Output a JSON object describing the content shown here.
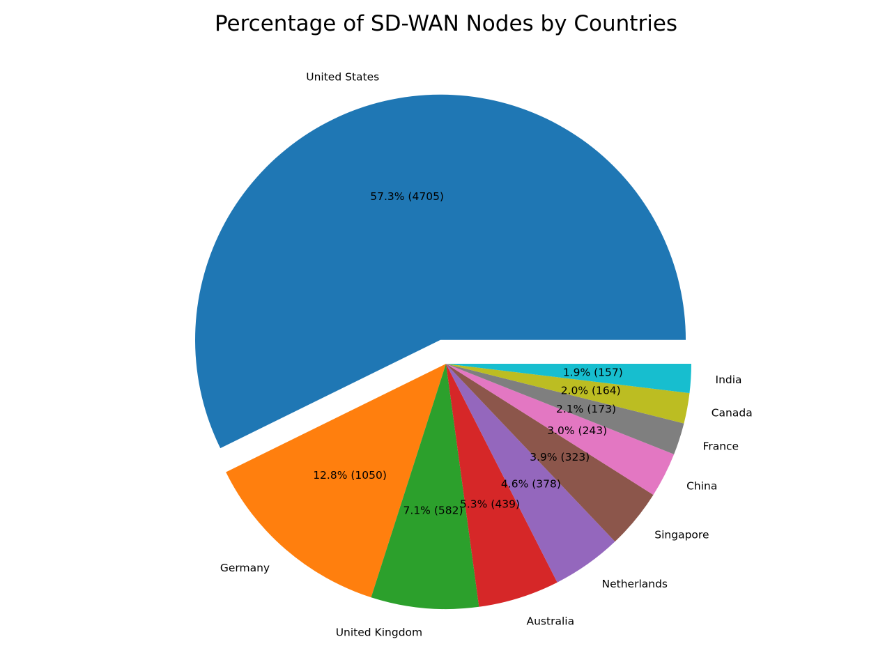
{
  "chart_data": {
    "type": "pie",
    "title": "Percentage of SD-WAN Nodes by Countries",
    "start_angle_deg": 0,
    "direction": "counterclockwise",
    "slices": [
      {
        "label": "United States",
        "value": 4705,
        "percent_label": "57.3% (4705)",
        "color": "#1f77b4",
        "exploded": true
      },
      {
        "label": "Germany",
        "value": 1050,
        "percent_label": "12.8% (1050)",
        "color": "#ff7f0e",
        "exploded": false
      },
      {
        "label": "United Kingdom",
        "value": 582,
        "percent_label": "7.1% (582)",
        "color": "#2ca02c",
        "exploded": false
      },
      {
        "label": "Australia",
        "value": 439,
        "percent_label": "5.3% (439)",
        "color": "#d62728",
        "exploded": false
      },
      {
        "label": "Netherlands",
        "value": 378,
        "percent_label": "4.6% (378)",
        "color": "#9467bd",
        "exploded": false
      },
      {
        "label": "Singapore",
        "value": 323,
        "percent_label": "3.9% (323)",
        "color": "#8c564b",
        "exploded": false
      },
      {
        "label": "China",
        "value": 243,
        "percent_label": "3.0% (243)",
        "color": "#e377c2",
        "exploded": false
      },
      {
        "label": "France",
        "value": 173,
        "percent_label": "2.1% (173)",
        "color": "#7f7f7f",
        "exploded": false
      },
      {
        "label": "Canada",
        "value": 164,
        "percent_label": "2.0% (164)",
        "color": "#bcbd22",
        "exploded": false
      },
      {
        "label": "India",
        "value": 157,
        "percent_label": "1.9% (157)",
        "color": "#17becf",
        "exploded": false
      }
    ]
  }
}
